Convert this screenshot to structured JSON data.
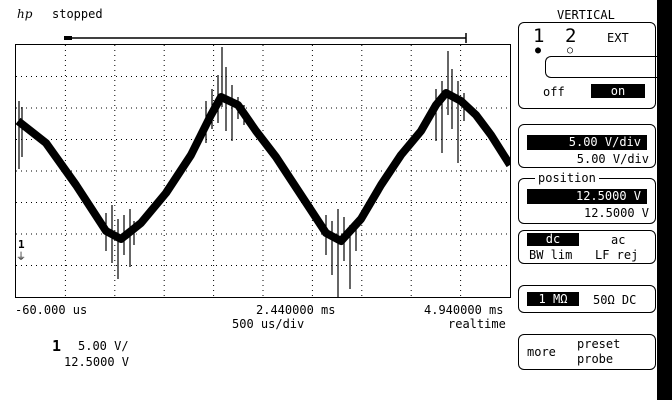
{
  "header": {
    "logo": "hp",
    "status": "stopped"
  },
  "vertical_menu": {
    "title": "VERTICAL",
    "ch1": "1",
    "ch2": "2",
    "ext": "EXT",
    "off": "off",
    "on": "on",
    "scale_selected": "5.00  V/div",
    "scale_value": "5.00  V/div",
    "position_label": "position",
    "position_selected": "12.5000  V",
    "position_value": "12.5000  V",
    "coupling_dc": "dc",
    "coupling_ac": "ac",
    "bw_lim": "BW lim",
    "lf_rej": "LF rej",
    "impedance_1m": "1 MΩ",
    "impedance_50": "50Ω DC",
    "more": "more",
    "preset": "preset",
    "probe": "probe"
  },
  "timebase": {
    "left_time": "-60.000 us",
    "center_time": "2.440000 ms",
    "right_time": "4.940000 ms",
    "per_div": "500  us/div",
    "mode": "realtime"
  },
  "channel_readout": {
    "channel": "1",
    "scale": "5.00  V/",
    "offset": "12.5000  V"
  },
  "ground_marker": "1"
}
